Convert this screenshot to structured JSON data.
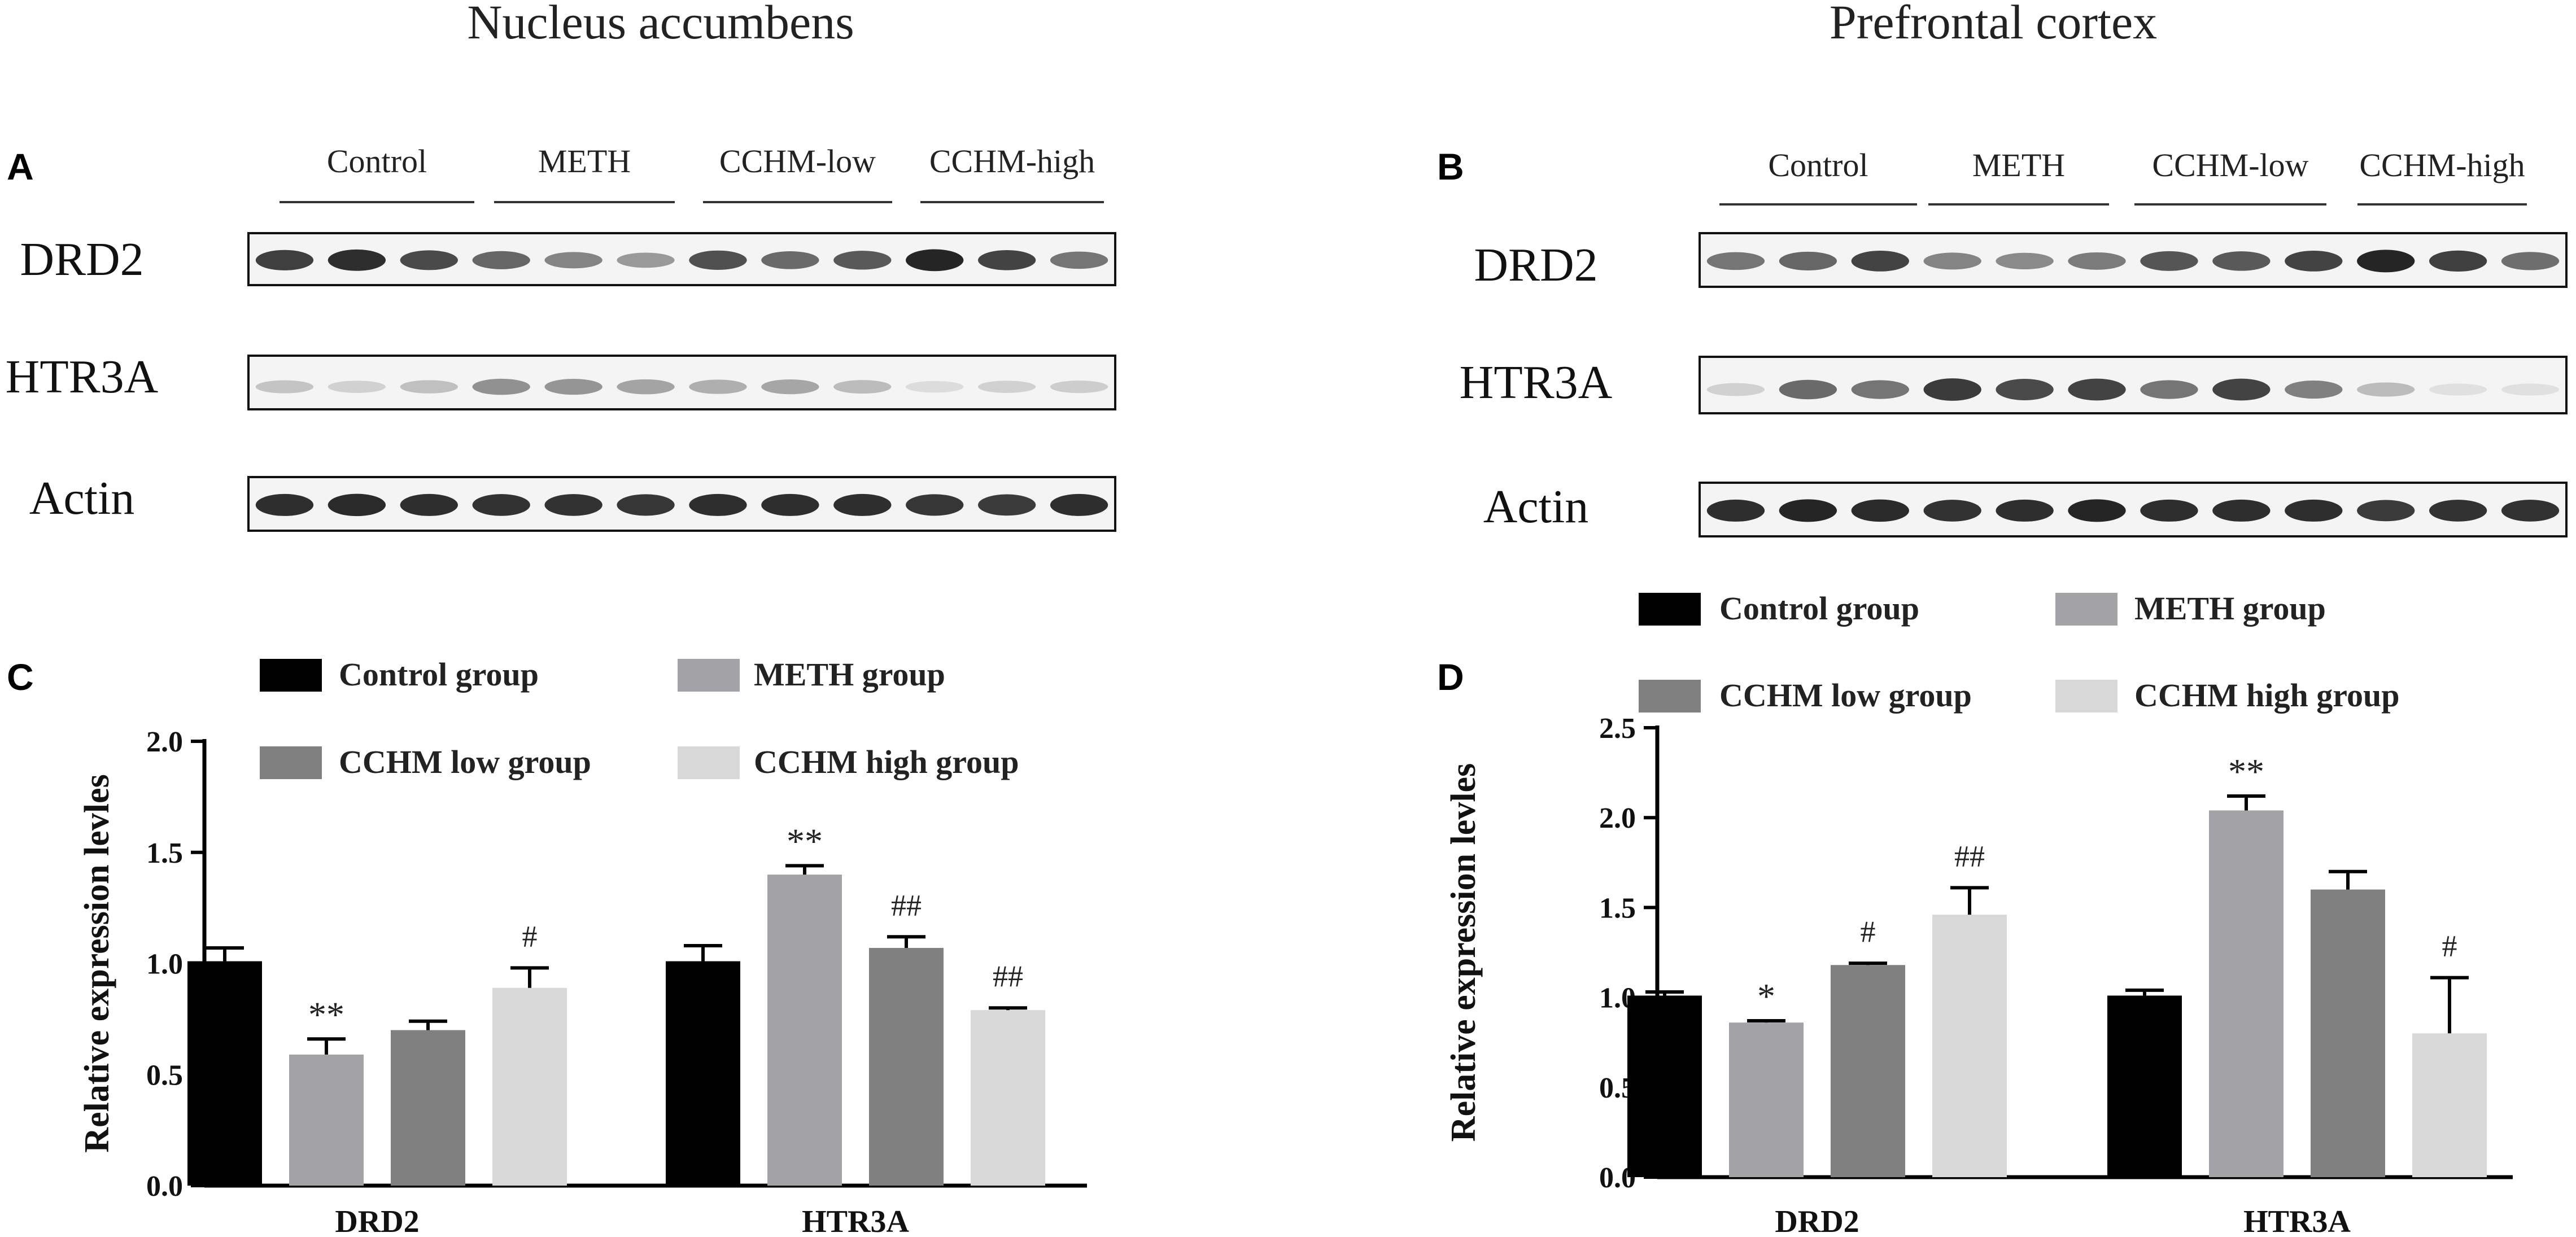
{
  "figure": {
    "titles": [
      "Nucleus accumbens",
      "Prefrontal cortex"
    ],
    "panel_letters": [
      "A",
      "B",
      "C",
      "D"
    ]
  },
  "blots": [
    {
      "panel": "A",
      "groups": [
        "Control",
        "METH",
        "CCHM-low",
        "CCHM-high"
      ],
      "rows": [
        "DRD2",
        "HTR3A",
        "Actin"
      ],
      "intensity": [
        [
          0.8,
          0.88,
          0.75,
          0.62,
          0.48,
          0.38,
          0.72,
          0.6,
          0.68,
          0.92,
          0.78,
          0.55
        ],
        [
          0.18,
          0.12,
          0.2,
          0.42,
          0.4,
          0.33,
          0.28,
          0.32,
          0.22,
          0.07,
          0.12,
          0.14
        ],
        [
          0.88,
          0.9,
          0.88,
          0.86,
          0.86,
          0.84,
          0.88,
          0.88,
          0.88,
          0.84,
          0.82,
          0.88
        ]
      ]
    },
    {
      "panel": "B",
      "groups": [
        "Control",
        "METH",
        "CCHM-low",
        "CCHM-high"
      ],
      "rows": [
        "DRD2",
        "HTR3A",
        "Actin"
      ],
      "intensity": [
        [
          0.55,
          0.62,
          0.78,
          0.48,
          0.45,
          0.52,
          0.7,
          0.68,
          0.78,
          0.92,
          0.8,
          0.58
        ],
        [
          0.12,
          0.6,
          0.55,
          0.82,
          0.75,
          0.78,
          0.55,
          0.78,
          0.5,
          0.22,
          0.05,
          0.05
        ],
        [
          0.88,
          0.92,
          0.9,
          0.86,
          0.88,
          0.92,
          0.88,
          0.88,
          0.88,
          0.82,
          0.86,
          0.86
        ]
      ]
    }
  ],
  "chart_data": [
    {
      "panel": "C",
      "type": "bar",
      "categories": [
        "DRD2",
        "HTR3A"
      ],
      "ylabel": "Relative expression levles",
      "ylim": [
        0,
        2.0
      ],
      "yticks": [
        "0.0",
        "0.5",
        "1.0",
        "1.5",
        "2.0"
      ],
      "legend_placement": "top",
      "series": [
        {
          "name": "Control group",
          "color": "#000000",
          "values": [
            1.01,
            1.01
          ],
          "errors": [
            0.06,
            0.07
          ],
          "annotations": [
            "",
            ""
          ]
        },
        {
          "name": "METH group",
          "color": "#a3a3a7",
          "values": [
            0.59,
            1.4
          ],
          "errors": [
            0.07,
            0.04
          ],
          "annotations": [
            "**",
            "**"
          ]
        },
        {
          "name": "CCHM low group",
          "color": "#808080",
          "values": [
            0.7,
            1.07
          ],
          "errors": [
            0.04,
            0.05
          ],
          "annotations": [
            "",
            "##"
          ]
        },
        {
          "name": "CCHM high group",
          "color": "#d8d8d8",
          "values": [
            0.89,
            0.79
          ],
          "errors": [
            0.09,
            0.01
          ],
          "annotations": [
            "#",
            "##"
          ]
        }
      ]
    },
    {
      "panel": "D",
      "type": "bar",
      "categories": [
        "DRD2",
        "HTR3A"
      ],
      "ylabel": "Relative expression levles",
      "ylim": [
        0,
        2.5
      ],
      "yticks": [
        "0.0",
        "0.5",
        "1.0",
        "1.5",
        "2.0",
        "2.5"
      ],
      "legend_placement": "top",
      "series": [
        {
          "name": "Control group",
          "color": "#000000",
          "values": [
            1.01,
            1.01
          ],
          "errors": [
            0.02,
            0.03
          ],
          "annotations": [
            "",
            ""
          ]
        },
        {
          "name": "METH group",
          "color": "#a3a3a7",
          "values": [
            0.86,
            2.04
          ],
          "errors": [
            0.01,
            0.08
          ],
          "annotations": [
            "*",
            "**"
          ]
        },
        {
          "name": "CCHM low group",
          "color": "#808080",
          "values": [
            1.18,
            1.6
          ],
          "errors": [
            0.01,
            0.1
          ],
          "annotations": [
            "#",
            ""
          ]
        },
        {
          "name": "CCHM high group",
          "color": "#d8d8d8",
          "values": [
            1.46,
            0.8
          ],
          "errors": [
            0.15,
            0.31
          ],
          "annotations": [
            "##",
            "#"
          ]
        }
      ]
    }
  ]
}
